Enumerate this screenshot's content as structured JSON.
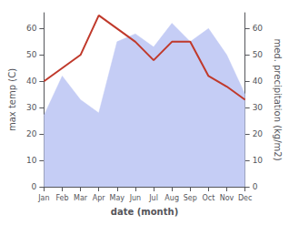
{
  "chart_data": {
    "type": "line",
    "xlabel": "date (month)",
    "ylabel": "max temp (C)",
    "y2label": "med. precipitation (kg/m2)",
    "categories": [
      "Jan",
      "Feb",
      "Mar",
      "Apr",
      "May",
      "Jun",
      "Jul",
      "Aug",
      "Sep",
      "Oct",
      "Nov",
      "Dec"
    ],
    "series": [
      {
        "type": "area",
        "axis": "y2",
        "color": "#c5cdf5",
        "values": [
          27,
          42,
          33,
          28,
          55,
          58,
          53,
          62,
          55,
          60,
          50,
          35
        ]
      },
      {
        "type": "line",
        "color": "#c0392b",
        "values": [
          40,
          45,
          50,
          65,
          60,
          55,
          48,
          55,
          55,
          42,
          38,
          33
        ]
      }
    ],
    "ylim": [
      0,
      66
    ],
    "yticks": [
      0,
      10,
      20,
      30,
      40,
      50,
      60
    ],
    "y2lim": [
      0,
      66
    ],
    "y2ticks": [
      0,
      10,
      20,
      30,
      40,
      50,
      60
    ],
    "grid": false
  }
}
